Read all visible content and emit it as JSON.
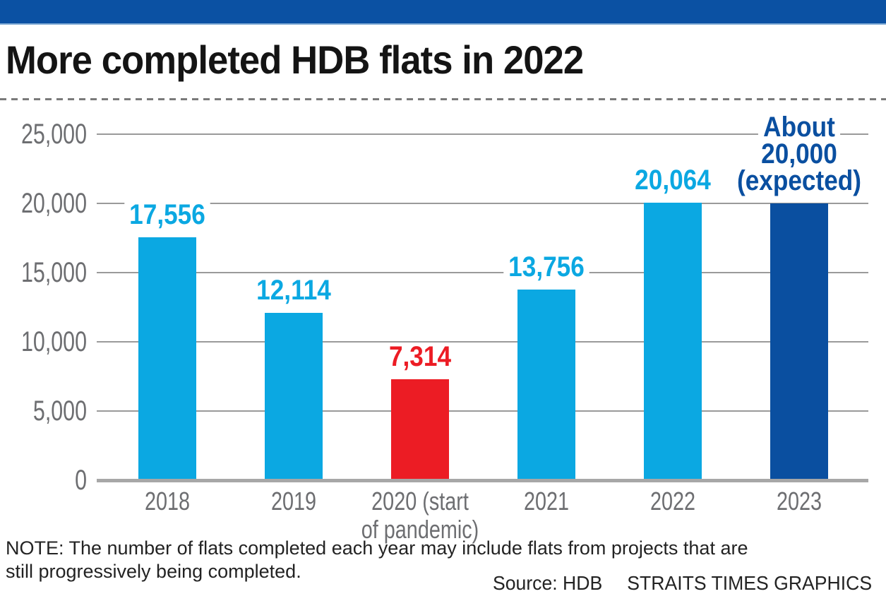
{
  "title": "More completed HDB flats in 2022",
  "note": {
    "line1": "NOTE: The number of flats completed each year may include flats from projects that are",
    "line2": "still progressively being completed."
  },
  "source": "Source: HDB",
  "credit": "STRAITS TIMES GRAPHICS",
  "colors": {
    "light_blue": "#0BA8E2",
    "dark_blue": "#0A4FA0",
    "red": "#EC1C24",
    "banner": "#0B51A3",
    "banner_edge": "#7FAAD4",
    "grid": "#9A9A9A",
    "baseline": "#A7A7A7",
    "axis_text": "#6D6E71",
    "note_text": "#232323",
    "dash": "#7A7A7A"
  },
  "chart_data": {
    "type": "bar",
    "title": "More completed HDB flats in 2022",
    "xlabel": "",
    "ylabel": "",
    "ylim": [
      0,
      25000
    ],
    "grid": "horizontal",
    "legend": "none",
    "yticks": [
      {
        "value": 25000,
        "label": "25,000"
      },
      {
        "value": 20000,
        "label": "20,000"
      },
      {
        "value": 15000,
        "label": "15,000"
      },
      {
        "value": 10000,
        "label": "10,000"
      },
      {
        "value": 5000,
        "label": "5,000"
      },
      {
        "value": 0,
        "label": "0"
      }
    ],
    "categories": [
      "2018",
      "2019",
      "2020 (start of pandemic)",
      "2021",
      "2022",
      "2023"
    ],
    "values": [
      17556,
      12114,
      7314,
      13756,
      20064,
      20000
    ],
    "bars": [
      {
        "id": "2018",
        "category_lines": [
          "2018"
        ],
        "value": 17556,
        "label_lines": [
          "17,556"
        ],
        "color": "light_blue",
        "label_color": "light_blue"
      },
      {
        "id": "2019",
        "category_lines": [
          "2019"
        ],
        "value": 12114,
        "label_lines": [
          "12,114"
        ],
        "color": "light_blue",
        "label_color": "light_blue"
      },
      {
        "id": "2020",
        "category_lines": [
          "2020 (start",
          "of pandemic)"
        ],
        "value": 7314,
        "label_lines": [
          "7,314"
        ],
        "color": "red",
        "label_color": "red"
      },
      {
        "id": "2021",
        "category_lines": [
          "2021"
        ],
        "value": 13756,
        "label_lines": [
          "13,756"
        ],
        "color": "light_blue",
        "label_color": "light_blue"
      },
      {
        "id": "2022",
        "category_lines": [
          "2022"
        ],
        "value": 20064,
        "label_lines": [
          "20,064"
        ],
        "color": "light_blue",
        "label_color": "light_blue"
      },
      {
        "id": "2023",
        "category_lines": [
          "2023"
        ],
        "value": 20000,
        "label_lines": [
          "About",
          "20,000",
          "(expected)"
        ],
        "color": "dark_blue",
        "label_color": "dark_blue"
      }
    ]
  }
}
